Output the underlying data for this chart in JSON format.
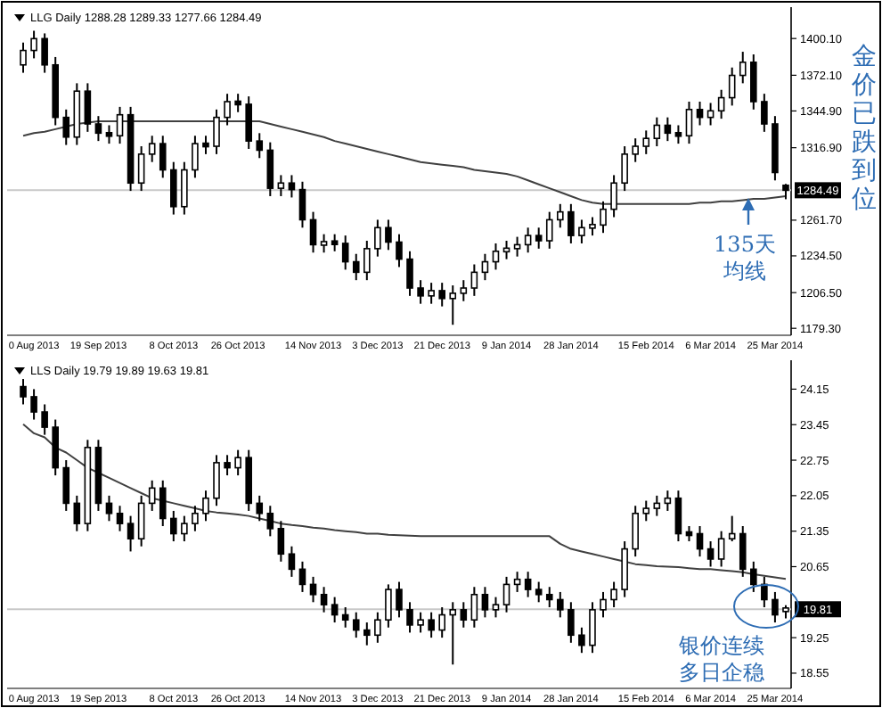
{
  "chart_data": [
    {
      "type": "candlestick",
      "title": "LLG Daily 1288.28 1289.33 1277.66 1284.49",
      "color": "#000000",
      "categories": [
        null,
        "0 Aug 2013",
        null,
        null,
        null,
        null,
        null,
        "19 Sep 2013",
        null,
        null,
        null,
        null,
        null,
        null,
        "8 Oct 2013",
        null,
        null,
        null,
        null,
        null,
        "26 Oct 2013",
        null,
        null,
        null,
        null,
        null,
        null,
        "14 Nov 2013",
        null,
        null,
        null,
        null,
        null,
        "3 Dec 2013",
        null,
        null,
        null,
        null,
        null,
        "21 Dec 2013",
        null,
        null,
        null,
        null,
        null,
        "9 Jan 2014",
        null,
        null,
        null,
        null,
        null,
        "28 Jan 2014",
        null,
        null,
        null,
        null,
        null,
        null,
        "15 Feb 2014",
        null,
        null,
        null,
        null,
        null,
        "6 Mar 2014",
        null,
        null,
        null,
        null,
        null,
        "25 Mar 2014",
        null
      ],
      "ohlc": [
        [
          1380,
          1397,
          1374,
          1391
        ],
        [
          1391,
          1406,
          1385,
          1400
        ],
        [
          1400,
          1404,
          1374,
          1380
        ],
        [
          1380,
          1386,
          1334,
          1340
        ],
        [
          1340,
          1346,
          1319,
          1325
        ],
        [
          1325,
          1366,
          1319,
          1360
        ],
        [
          1360,
          1366,
          1329,
          1335
        ],
        [
          1335,
          1341,
          1322,
          1328
        ],
        [
          1328,
          1334,
          1320,
          1326
        ],
        [
          1326,
          1348,
          1320,
          1342
        ],
        [
          1342,
          1348,
          1284,
          1290
        ],
        [
          1290,
          1318,
          1284,
          1312
        ],
        [
          1312,
          1326,
          1306,
          1320
        ],
        [
          1320,
          1326,
          1294,
          1300
        ],
        [
          1300,
          1306,
          1266,
          1272
        ],
        [
          1272,
          1306,
          1266,
          1300
        ],
        [
          1300,
          1326,
          1294,
          1320
        ],
        [
          1320,
          1326,
          1312,
          1318
        ],
        [
          1318,
          1346,
          1312,
          1340
        ],
        [
          1340,
          1358,
          1334,
          1352
        ],
        [
          1352,
          1358,
          1344,
          1350
        ],
        [
          1350,
          1356,
          1316,
          1322
        ],
        [
          1322,
          1328,
          1309,
          1315
        ],
        [
          1315,
          1321,
          1280,
          1286
        ],
        [
          1286,
          1296,
          1280,
          1290
        ],
        [
          1290,
          1296,
          1279,
          1285
        ],
        [
          1285,
          1291,
          1256,
          1262
        ],
        [
          1262,
          1268,
          1237,
          1243
        ],
        [
          1243,
          1251,
          1237,
          1245
        ],
        [
          1245,
          1251,
          1238,
          1244
        ],
        [
          1244,
          1250,
          1224,
          1230
        ],
        [
          1230,
          1236,
          1216,
          1222
        ],
        [
          1222,
          1246,
          1216,
          1240
        ],
        [
          1240,
          1262,
          1234,
          1256
        ],
        [
          1256,
          1262,
          1239,
          1245
        ],
        [
          1245,
          1251,
          1226,
          1232
        ],
        [
          1232,
          1238,
          1204,
          1210
        ],
        [
          1210,
          1216,
          1198,
          1204
        ],
        [
          1204,
          1214,
          1198,
          1208
        ],
        [
          1208,
          1214,
          1196,
          1202
        ],
        [
          1202,
          1212,
          1182,
          1206
        ],
        [
          1206,
          1216,
          1200,
          1210
        ],
        [
          1210,
          1228,
          1204,
          1222
        ],
        [
          1222,
          1236,
          1216,
          1230
        ],
        [
          1230,
          1244,
          1224,
          1238
        ],
        [
          1238,
          1246,
          1232,
          1240
        ],
        [
          1240,
          1249,
          1234,
          1243
        ],
        [
          1243,
          1256,
          1237,
          1250
        ],
        [
          1250,
          1256,
          1240,
          1246
        ],
        [
          1246,
          1268,
          1240,
          1262
        ],
        [
          1262,
          1274,
          1256,
          1268
        ],
        [
          1268,
          1274,
          1244,
          1250
        ],
        [
          1250,
          1262,
          1244,
          1256
        ],
        [
          1256,
          1264,
          1250,
          1258
        ],
        [
          1258,
          1276,
          1252,
          1270
        ],
        [
          1270,
          1296,
          1264,
          1290
        ],
        [
          1290,
          1318,
          1284,
          1312
        ],
        [
          1312,
          1324,
          1306,
          1318
        ],
        [
          1318,
          1330,
          1312,
          1324
        ],
        [
          1324,
          1340,
          1318,
          1334
        ],
        [
          1334,
          1340,
          1322,
          1328
        ],
        [
          1328,
          1334,
          1320,
          1326
        ],
        [
          1326,
          1352,
          1320,
          1346
        ],
        [
          1346,
          1352,
          1334,
          1340
        ],
        [
          1340,
          1351,
          1334,
          1345
        ],
        [
          1345,
          1361,
          1339,
          1355
        ],
        [
          1355,
          1378,
          1349,
          1372
        ],
        [
          1372,
          1390,
          1366,
          1382
        ],
        [
          1382,
          1388,
          1346,
          1352
        ],
        [
          1352,
          1358,
          1329,
          1335
        ],
        [
          1335,
          1341,
          1292,
          1298
        ],
        [
          1288.28,
          1289.33,
          1277.66,
          1284.49
        ]
      ],
      "series": [
        {
          "type": "line",
          "color": "#404040",
          "values": [
            1326,
            1328,
            1329,
            1331,
            1333,
            1335,
            1336,
            1337,
            1337,
            1337,
            1337,
            1337,
            1337,
            1337,
            1337,
            1337,
            1337,
            1337,
            1337,
            1337,
            1337,
            1337,
            1337,
            1335,
            1333,
            1331,
            1329,
            1327,
            1325,
            1322,
            1320,
            1318,
            1316,
            1314,
            1312,
            1310,
            1308,
            1306,
            1305,
            1304,
            1303,
            1302,
            1300,
            1299,
            1298,
            1297,
            1295,
            1292,
            1289,
            1286,
            1283,
            1280,
            1277,
            1275,
            1274,
            1274,
            1274,
            1274,
            1274,
            1274,
            1274,
            1274,
            1274,
            1275,
            1275,
            1276,
            1276,
            1277,
            1278,
            1278,
            1279,
            1280
          ]
        }
      ],
      "ylim": [
        1174,
        1424
      ],
      "yticks": [
        {
          "value": 1179.3,
          "label": "1179.30"
        },
        {
          "value": 1206.5,
          "label": "1206.50"
        },
        {
          "value": 1234.5,
          "label": "1234.50"
        },
        {
          "value": 1261.7,
          "label": "1261.70"
        },
        {
          "value": 1316.9,
          "label": "1316.90"
        },
        {
          "value": 1344.9,
          "label": "1344.90"
        },
        {
          "value": 1372.1,
          "label": "1372.10"
        },
        {
          "value": 1400.1,
          "label": "1400.10"
        }
      ],
      "ref_lines": [
        {
          "axis": "y",
          "value": 1284.49,
          "label": "1284.49",
          "color": "#c8c8c8"
        }
      ],
      "annotations": [
        "金价已跌到位",
        "135天均线"
      ]
    },
    {
      "type": "candlestick",
      "title": "LLS Daily 19.79 19.89 19.63 19.81",
      "color": "#000000",
      "categories": [
        null,
        "0 Aug 2013",
        null,
        null,
        null,
        null,
        null,
        "19 Sep 2013",
        null,
        null,
        null,
        null,
        null,
        null,
        "8 Oct 2013",
        null,
        null,
        null,
        null,
        null,
        "26 Oct 2013",
        null,
        null,
        null,
        null,
        null,
        null,
        "14 Nov 2013",
        null,
        null,
        null,
        null,
        null,
        "3 Dec 2013",
        null,
        null,
        null,
        null,
        null,
        "21 Dec 2013",
        null,
        null,
        null,
        null,
        null,
        "9 Jan 2014",
        null,
        null,
        null,
        null,
        null,
        "28 Jan 2014",
        null,
        null,
        null,
        null,
        null,
        null,
        "15 Feb 2014",
        null,
        null,
        null,
        null,
        null,
        "6 Mar 2014",
        null,
        null,
        null,
        null,
        null,
        "25 Mar 2014",
        null
      ],
      "ohlc": [
        [
          24.2,
          24.35,
          23.85,
          24.0
        ],
        [
          24.0,
          24.15,
          23.55,
          23.7
        ],
        [
          23.7,
          23.85,
          23.25,
          23.4
        ],
        [
          23.4,
          23.55,
          22.45,
          22.6
        ],
        [
          22.6,
          22.75,
          21.75,
          21.9
        ],
        [
          21.9,
          22.05,
          21.35,
          21.5
        ],
        [
          21.5,
          23.15,
          21.35,
          23.0
        ],
        [
          23.0,
          23.15,
          21.75,
          21.9
        ],
        [
          21.9,
          22.05,
          21.55,
          21.7
        ],
        [
          21.7,
          21.85,
          21.35,
          21.5
        ],
        [
          21.5,
          21.65,
          20.95,
          21.2
        ],
        [
          21.2,
          22.05,
          21.05,
          21.9
        ],
        [
          21.9,
          22.35,
          21.75,
          22.2
        ],
        [
          22.2,
          22.35,
          21.45,
          21.6
        ],
        [
          21.6,
          21.75,
          21.15,
          21.3
        ],
        [
          21.3,
          21.65,
          21.15,
          21.5
        ],
        [
          21.5,
          21.85,
          21.35,
          21.7
        ],
        [
          21.7,
          22.15,
          21.55,
          22.0
        ],
        [
          22.0,
          22.85,
          21.85,
          22.7
        ],
        [
          22.7,
          22.85,
          22.45,
          22.6
        ],
        [
          22.6,
          22.95,
          22.45,
          22.8
        ],
        [
          22.8,
          22.95,
          21.75,
          21.9
        ],
        [
          21.9,
          22.05,
          21.55,
          21.7
        ],
        [
          21.7,
          21.85,
          21.25,
          21.4
        ],
        [
          21.4,
          21.55,
          20.75,
          20.9
        ],
        [
          20.9,
          21.05,
          20.45,
          20.6
        ],
        [
          20.6,
          20.75,
          20.15,
          20.3
        ],
        [
          20.3,
          20.45,
          19.95,
          20.1
        ],
        [
          20.1,
          20.25,
          19.75,
          19.9
        ],
        [
          19.9,
          20.05,
          19.55,
          19.7
        ],
        [
          19.7,
          19.85,
          19.45,
          19.6
        ],
        [
          19.6,
          19.75,
          19.25,
          19.4
        ],
        [
          19.4,
          19.55,
          19.1,
          19.3
        ],
        [
          19.3,
          19.75,
          19.15,
          19.6
        ],
        [
          19.6,
          20.3,
          19.45,
          20.2
        ],
        [
          20.2,
          20.35,
          19.65,
          19.8
        ],
        [
          19.8,
          19.95,
          19.35,
          19.5
        ],
        [
          19.5,
          19.75,
          19.35,
          19.6
        ],
        [
          19.6,
          19.75,
          19.25,
          19.4
        ],
        [
          19.4,
          19.85,
          19.25,
          19.7
        ],
        [
          19.7,
          19.95,
          18.72,
          19.8
        ],
        [
          19.8,
          19.95,
          19.45,
          19.6
        ],
        [
          19.6,
          20.25,
          19.45,
          20.1
        ],
        [
          20.1,
          20.25,
          19.65,
          19.8
        ],
        [
          19.8,
          20.05,
          19.65,
          19.9
        ],
        [
          19.9,
          20.45,
          19.75,
          20.3
        ],
        [
          20.3,
          20.55,
          20.15,
          20.4
        ],
        [
          20.4,
          20.55,
          20.05,
          20.2
        ],
        [
          20.2,
          20.35,
          19.95,
          20.1
        ],
        [
          20.1,
          20.25,
          19.85,
          20.0
        ],
        [
          20.0,
          20.15,
          19.65,
          19.8
        ],
        [
          19.8,
          19.95,
          19.15,
          19.3
        ],
        [
          19.3,
          19.45,
          18.95,
          19.1
        ],
        [
          19.1,
          19.95,
          18.95,
          19.8
        ],
        [
          19.8,
          20.15,
          19.65,
          20.0
        ],
        [
          20.0,
          20.35,
          19.85,
          20.2
        ],
        [
          20.2,
          21.15,
          20.05,
          21.0
        ],
        [
          21.0,
          21.85,
          20.85,
          21.7
        ],
        [
          21.7,
          21.95,
          21.55,
          21.8
        ],
        [
          21.8,
          22.05,
          21.65,
          21.9
        ],
        [
          21.9,
          22.15,
          21.75,
          22.0
        ],
        [
          22.0,
          22.15,
          21.15,
          21.3
        ],
        [
          21.3,
          21.45,
          21.15,
          21.3
        ],
        [
          21.3,
          21.45,
          20.85,
          21.0
        ],
        [
          21.0,
          21.15,
          20.65,
          20.8
        ],
        [
          20.8,
          21.35,
          20.65,
          21.2
        ],
        [
          21.2,
          21.65,
          21.15,
          21.3
        ],
        [
          21.3,
          21.45,
          20.45,
          20.6
        ],
        [
          20.6,
          20.75,
          20.15,
          20.3
        ],
        [
          20.3,
          20.45,
          19.85,
          20.0
        ],
        [
          20.0,
          20.15,
          19.55,
          19.7
        ],
        [
          19.79,
          19.89,
          19.63,
          19.81
        ]
      ],
      "series": [
        {
          "type": "line",
          "color": "#404040",
          "values": [
            23.46,
            23.28,
            23.2,
            23.0,
            22.9,
            22.75,
            22.6,
            22.5,
            22.4,
            22.3,
            22.2,
            22.1,
            22.0,
            21.95,
            21.9,
            21.85,
            21.8,
            21.75,
            21.72,
            21.7,
            21.68,
            21.65,
            21.6,
            21.55,
            21.5,
            21.47,
            21.45,
            21.42,
            21.4,
            21.37,
            21.35,
            21.33,
            21.3,
            21.3,
            21.28,
            21.27,
            21.26,
            21.25,
            21.25,
            21.25,
            21.25,
            21.25,
            21.25,
            21.25,
            21.25,
            21.25,
            21.25,
            21.25,
            21.25,
            21.25,
            21.1,
            21.0,
            20.95,
            20.9,
            20.85,
            20.8,
            20.75,
            20.7,
            20.68,
            20.66,
            20.65,
            20.64,
            20.62,
            20.6,
            20.6,
            20.58,
            20.56,
            20.54,
            20.5,
            20.47,
            20.44,
            20.41
          ]
        }
      ],
      "ylim": [
        18.25,
        24.72
      ],
      "yticks": [
        18.55,
        19.25,
        20.65,
        21.35,
        22.05,
        22.75,
        23.45,
        24.15
      ],
      "ref_lines": [
        {
          "axis": "y",
          "value": 19.81,
          "label": "19.81",
          "color": "#c8c8c8"
        }
      ],
      "annotations": [
        "银价连续多日企稳"
      ]
    }
  ]
}
